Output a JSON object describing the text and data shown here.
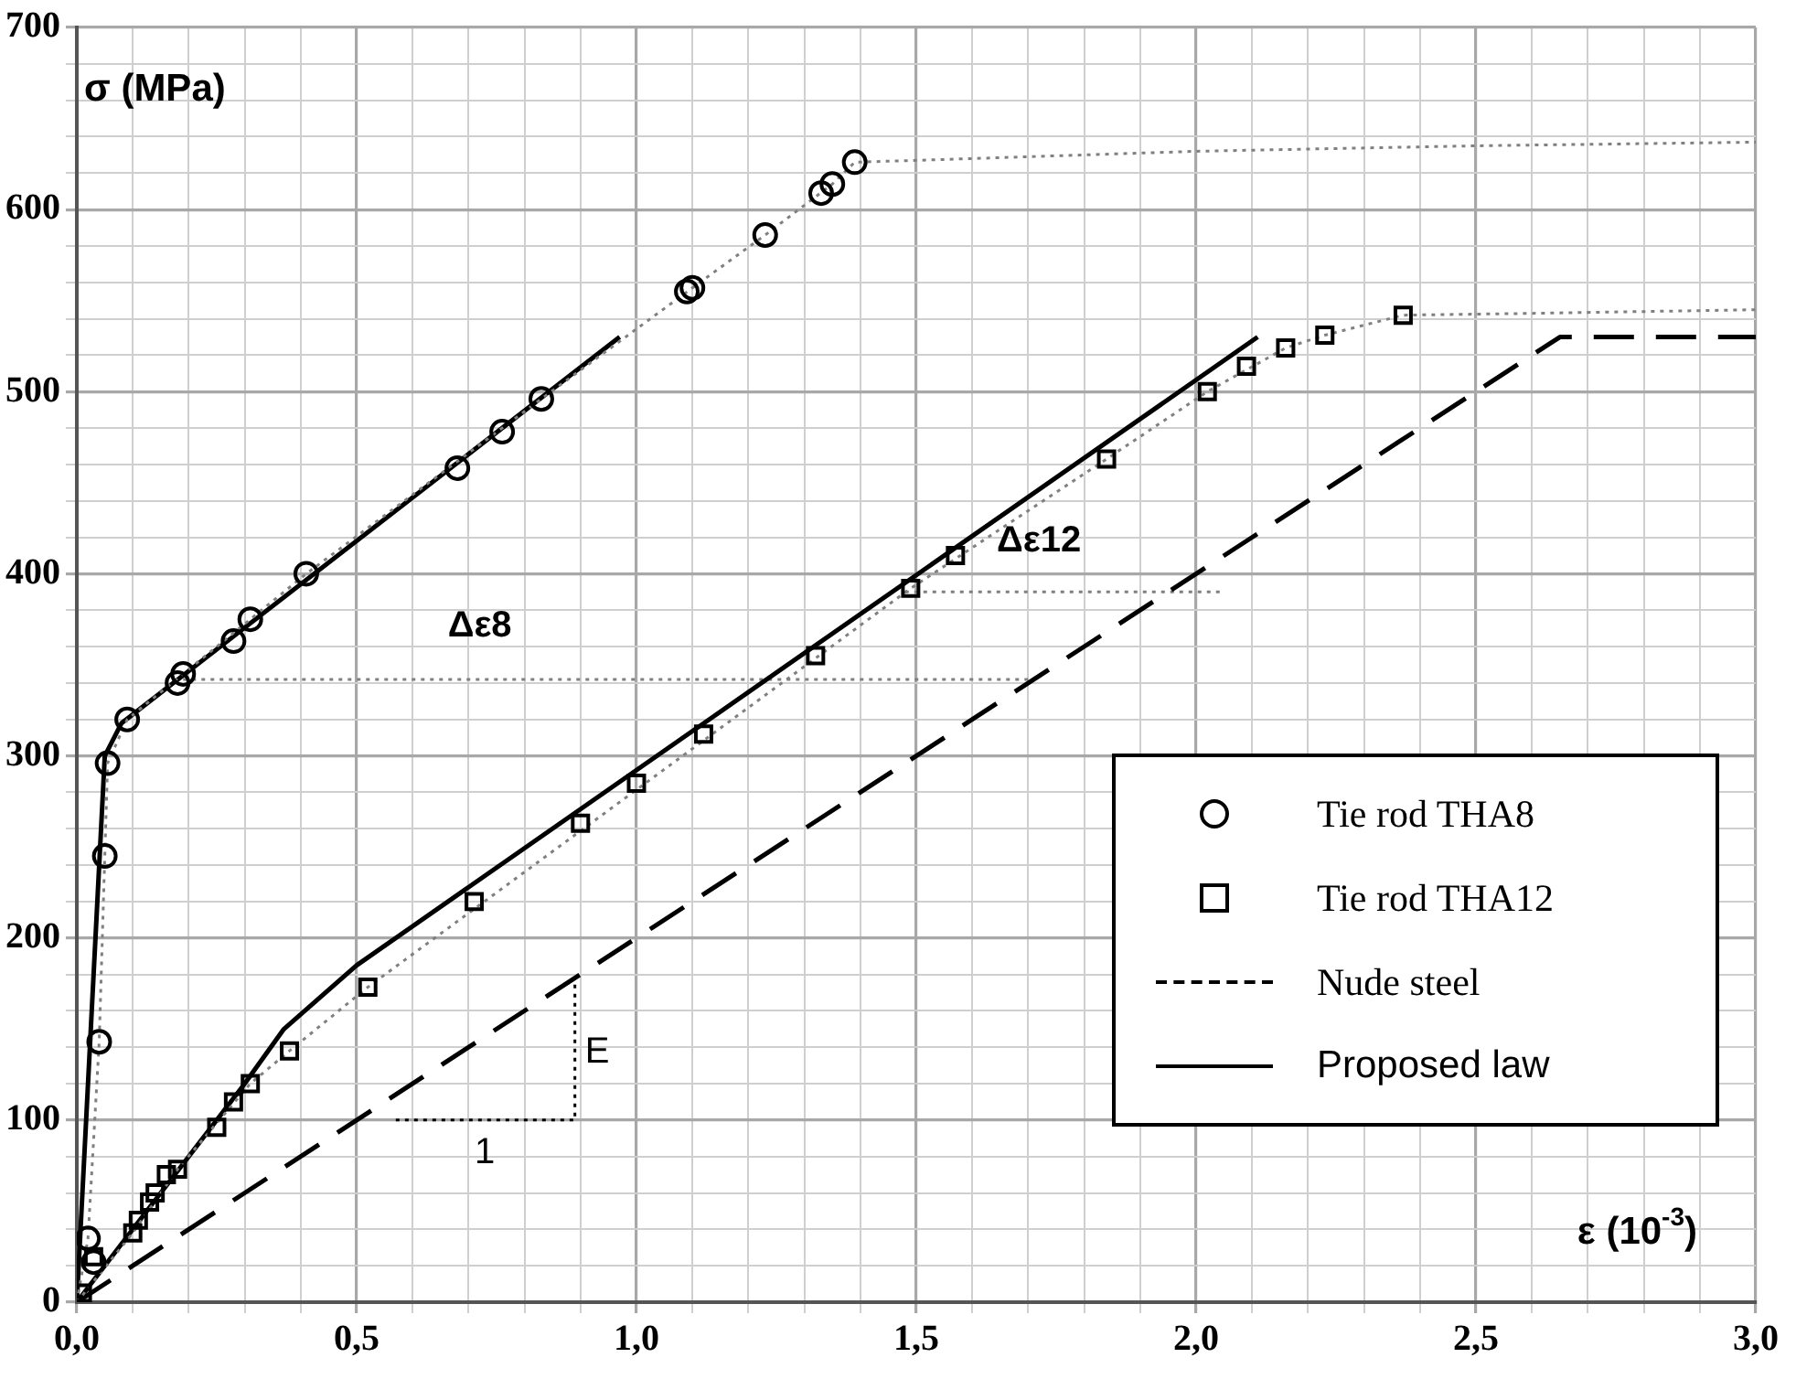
{
  "chart_data": {
    "type": "line",
    "xlabel": "ε (10$^{-3}$)",
    "ylabel": "σ (MPa)",
    "xlim": [
      0,
      3
    ],
    "ylim": [
      0,
      700
    ],
    "xticks": [
      {
        "value": 0,
        "label": "0,0"
      },
      {
        "value": 0.1,
        "label": null
      },
      {
        "value": 0.2,
        "label": null
      },
      {
        "value": 0.3,
        "label": null
      },
      {
        "value": 0.4,
        "label": null
      },
      {
        "value": 0.5,
        "label": "0,5"
      },
      {
        "value": 0.6,
        "label": null
      },
      {
        "value": 0.7,
        "label": null
      },
      {
        "value": 0.8,
        "label": null
      },
      {
        "value": 0.9,
        "label": null
      },
      {
        "value": 1,
        "label": "1,0"
      },
      {
        "value": 1.1,
        "label": null
      },
      {
        "value": 1.2,
        "label": null
      },
      {
        "value": 1.3,
        "label": null
      },
      {
        "value": 1.4,
        "label": null
      },
      {
        "value": 1.5,
        "label": "1,5"
      },
      {
        "value": 1.6,
        "label": null
      },
      {
        "value": 1.7,
        "label": null
      },
      {
        "value": 1.8,
        "label": null
      },
      {
        "value": 1.9,
        "label": null
      },
      {
        "value": 2,
        "label": "2,0"
      },
      {
        "value": 2.1,
        "label": null
      },
      {
        "value": 2.2,
        "label": null
      },
      {
        "value": 2.3,
        "label": null
      },
      {
        "value": 2.4,
        "label": null
      },
      {
        "value": 2.5,
        "label": "2,5"
      },
      {
        "value": 2.6,
        "label": null
      },
      {
        "value": 2.7,
        "label": null
      },
      {
        "value": 2.8,
        "label": null
      },
      {
        "value": 2.9,
        "label": null
      },
      {
        "value": 3,
        "label": "3,0"
      }
    ],
    "yticks": [
      0,
      {
        "value": 20,
        "label": null
      },
      {
        "value": 40,
        "label": null
      },
      {
        "value": 60,
        "label": null
      },
      {
        "value": 80,
        "label": null
      },
      100,
      {
        "value": 120,
        "label": null
      },
      {
        "value": 140,
        "label": null
      },
      {
        "value": 160,
        "label": null
      },
      {
        "value": 180,
        "label": null
      },
      200,
      {
        "value": 220,
        "label": null
      },
      {
        "value": 240,
        "label": null
      },
      {
        "value": 260,
        "label": null
      },
      {
        "value": 280,
        "label": null
      },
      300,
      {
        "value": 320,
        "label": null
      },
      {
        "value": 340,
        "label": null
      },
      {
        "value": 360,
        "label": null
      },
      {
        "value": 380,
        "label": null
      },
      400,
      {
        "value": 420,
        "label": null
      },
      {
        "value": 440,
        "label": null
      },
      {
        "value": 460,
        "label": null
      },
      {
        "value": 480,
        "label": null
      },
      500,
      {
        "value": 520,
        "label": null
      },
      {
        "value": 540,
        "label": null
      },
      {
        "value": 560,
        "label": null
      },
      {
        "value": 580,
        "label": null
      },
      600,
      {
        "value": 620,
        "label": null
      },
      {
        "value": 640,
        "label": null
      },
      {
        "value": 660,
        "label": null
      },
      {
        "value": 680,
        "label": null
      },
      700
    ],
    "grid": true,
    "legend": "bottom right",
    "series": [
      {
        "type": "line",
        "color": "#808080",
        "line_style": "dotted",
        "marker": "none",
        "x": [
          0,
          0.02,
          0.04,
          0.05,
          0.055,
          0.09,
          0.19,
          0.41,
          0.83,
          1.1,
          1.23,
          1.35,
          1.39,
          1.5,
          2,
          2.5,
          3
        ],
        "values": [
          0,
          35,
          143,
          245,
          296,
          320,
          345,
          400,
          496,
          557,
          586,
          614,
          626,
          627,
          632,
          635,
          637
        ]
      },
      {
        "type": "line",
        "color": "#808080",
        "line_style": "dotted",
        "marker": "none",
        "x": [
          0,
          0.1,
          0.18,
          0.31,
          0.38,
          0.52,
          1.49,
          1.84,
          2.02,
          2.16,
          2.23,
          2.37,
          2.6,
          3
        ],
        "values": [
          0,
          38,
          73,
          120,
          138,
          173,
          392,
          463,
          500,
          524,
          531,
          542,
          543,
          545
        ]
      },
      {
        "type": "scatter",
        "name": "Tie rod THA8",
        "color": "#000000",
        "marker": "circle",
        "x": [
          0.02,
          0.03,
          0.04,
          0.05,
          0.055,
          0.09,
          0.18,
          0.19,
          0.28,
          0.31,
          0.41,
          0.68,
          0.76,
          0.83,
          1.09,
          1.1,
          1.23,
          1.33,
          1.35,
          1.39
        ],
        "values": [
          35,
          22,
          143,
          245,
          296,
          320,
          340,
          345,
          363,
          375,
          400,
          458,
          478,
          496,
          555,
          557,
          586,
          609,
          614,
          626
        ]
      },
      {
        "type": "scatter",
        "name": "Tie rod THA12",
        "color": "#000000",
        "marker": "square",
        "x": [
          0.01,
          0.03,
          0.1,
          0.11,
          0.13,
          0.14,
          0.16,
          0.18,
          0.25,
          0.28,
          0.31,
          0.38,
          0.52,
          0.71,
          0.9,
          1,
          1.12,
          1.32,
          1.49,
          1.57,
          1.84,
          2.02,
          2.09,
          2.16,
          2.23,
          2.37
        ],
        "values": [
          5,
          25,
          38,
          45,
          55,
          60,
          70,
          73,
          96,
          110,
          120,
          138,
          173,
          220,
          263,
          285,
          312,
          355,
          392,
          410,
          463,
          500,
          514,
          524,
          531,
          542
        ]
      },
      {
        "type": "line",
        "name": "Nude steel",
        "color": "#000000",
        "line_style": "dashed",
        "marker": "none",
        "x": [
          0,
          2.65,
          3
        ],
        "values": [
          0,
          530,
          530
        ]
      },
      {
        "type": "line",
        "name": "Proposed law",
        "color": "#000000",
        "line_style": "solid",
        "marker": "none",
        "x": [
          0,
          0.05,
          0.08,
          0.97
        ],
        "values": [
          0,
          300,
          318,
          530
        ]
      },
      {
        "type": "line",
        "color": "#000000",
        "line_style": "solid",
        "marker": "none",
        "x": [
          0,
          0.1,
          0.3,
          0.37,
          0.5,
          2.11
        ],
        "values": [
          0,
          40,
          120,
          150,
          185,
          530
        ]
      },
      {
        "type": "line",
        "color": "#808080",
        "line_style": "dotted",
        "marker": "none",
        "x": [
          0.19,
          1.7
        ],
        "values": [
          342,
          342
        ]
      },
      {
        "type": "line",
        "color": "#808080",
        "line_style": "dotted",
        "marker": "none",
        "x": [
          1.48,
          2.05
        ],
        "values": [
          390,
          390
        ]
      },
      {
        "type": "line",
        "color": "#000000",
        "line_style": "dotted",
        "marker": "none",
        "x": [
          0.57,
          0.89,
          0.89
        ],
        "values": [
          100,
          100,
          175
        ]
      }
    ],
    "annotations": [
      "Δε8",
      "Δε12",
      "E",
      "1"
    ]
  }
}
